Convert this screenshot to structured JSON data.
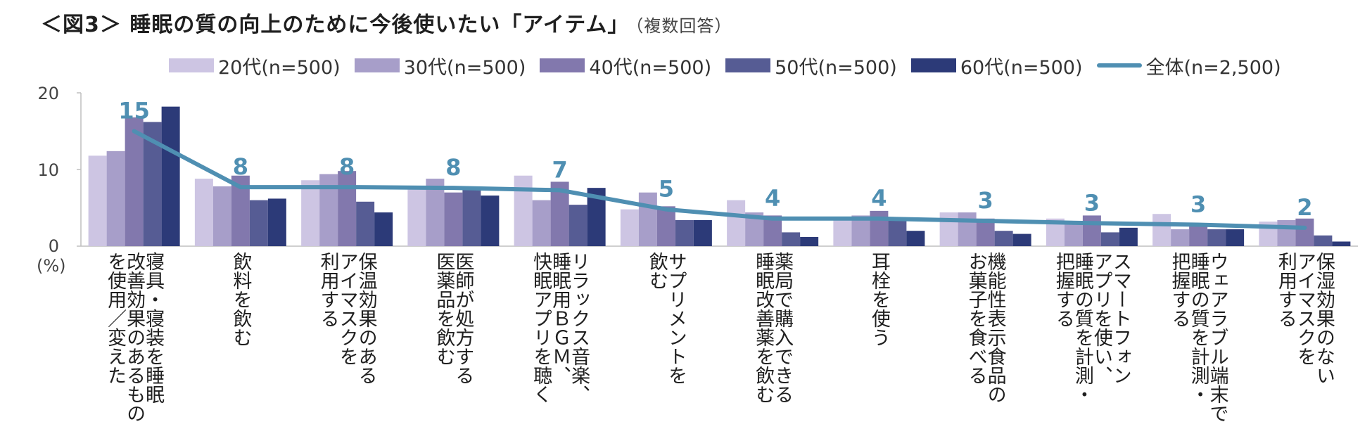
{
  "title": "＜図3＞ 睡眠の質の向上のために今後使いたい「アイテム」",
  "title_note": "（複数回答）",
  "legend": [
    {
      "name": "20代(n=500)",
      "color": "#cdc5e3"
    },
    {
      "name": "30代(n=500)",
      "color": "#a79ec9"
    },
    {
      "name": "40代(n=500)",
      "color": "#8278ad"
    },
    {
      "name": "50代(n=500)",
      "color": "#565c94"
    },
    {
      "name": "60代(n=500)",
      "color": "#2c3a78"
    },
    {
      "name": "全体(n=2,500)",
      "color": "#4f8fb2"
    }
  ],
  "chart_data": {
    "type": "bar",
    "title": "睡眠の質の向上のために今後使いたい「アイテム」（複数回答）",
    "ylabel": "(%)",
    "ylim": [
      0,
      20
    ],
    "yticks": [
      "0",
      "10",
      "20"
    ],
    "categories": [
      "寝具・寝装を睡眠改善効果のあるものを使用／変えた",
      "飲料を飲む",
      "保温効果のあるアイマスクを利用する",
      "医師が処方する医薬品を飲む",
      "リラックス音楽、睡眠用ＢＧＭ、快眠アプリを聴く",
      "サプリメントを飲む",
      "薬局で購入できる睡眠改善薬を飲む",
      "耳栓を使う",
      "機能性表示食品のお菓子を食べる",
      "スマートフォンアプリを使い、睡眠の質を計測・把握する",
      "ウェアラブル端末で睡眠の質を計測・把握する",
      "保湿効果のないアイマスクを利用する"
    ],
    "category_lines": [
      [
        "寝具・寝装を睡眠",
        "改善効果のあるもの",
        "を使用／変えた"
      ],
      [
        "飲料を飲む"
      ],
      [
        "保温効果のある",
        "アイマスクを",
        "利用する"
      ],
      [
        "医師が処方する",
        "医薬品を飲む"
      ],
      [
        "リラックス音楽、",
        "睡眠用ＢＧＭ、",
        "快眠アプリを聴く"
      ],
      [
        "サプリメントを",
        "飲む"
      ],
      [
        "薬局で購入できる",
        "睡眠改善薬を飲む"
      ],
      [
        "耳栓を使う"
      ],
      [
        "機能性表示食品の",
        "お菓子を食べる"
      ],
      [
        "スマートフォン",
        "アプリを使い、",
        "睡眠の質を計測・",
        "把握する"
      ],
      [
        "ウェアラブル端末で",
        "睡眠の質を計測・",
        "把握する"
      ],
      [
        "保湿効果のない",
        "アイマスクを",
        "利用する"
      ]
    ],
    "series": [
      {
        "name": "20代(n=500)",
        "values": [
          11.8,
          8.8,
          8.6,
          7.4,
          9.2,
          4.8,
          6.0,
          3.8,
          4.4,
          3.6,
          4.2,
          3.2
        ]
      },
      {
        "name": "30代(n=500)",
        "values": [
          12.4,
          7.8,
          9.4,
          8.8,
          6.0,
          7.0,
          4.4,
          4.0,
          4.4,
          3.2,
          2.2,
          3.4
        ]
      },
      {
        "name": "40代(n=500)",
        "values": [
          16.8,
          9.2,
          9.8,
          7.0,
          8.4,
          5.2,
          4.0,
          4.6,
          3.6,
          4.0,
          3.0,
          3.6
        ]
      },
      {
        "name": "50代(n=500)",
        "values": [
          16.2,
          6.0,
          5.8,
          7.6,
          5.4,
          3.4,
          1.8,
          3.4,
          2.0,
          1.8,
          2.2,
          1.4
        ]
      },
      {
        "name": "60代(n=500)",
        "values": [
          18.2,
          6.2,
          4.4,
          6.6,
          7.6,
          3.4,
          1.2,
          2.0,
          1.6,
          2.4,
          2.2,
          0.6
        ]
      }
    ],
    "total": {
      "name": "全体(n=2,500)",
      "values": [
        15.0,
        7.7,
        7.7,
        7.6,
        7.3,
        4.8,
        3.6,
        3.6,
        3.3,
        3.0,
        2.8,
        2.4
      ],
      "labels": [
        "15",
        "8",
        "8",
        "8",
        "7",
        "5",
        "4",
        "4",
        "3",
        "3",
        "3",
        "2"
      ]
    }
  }
}
